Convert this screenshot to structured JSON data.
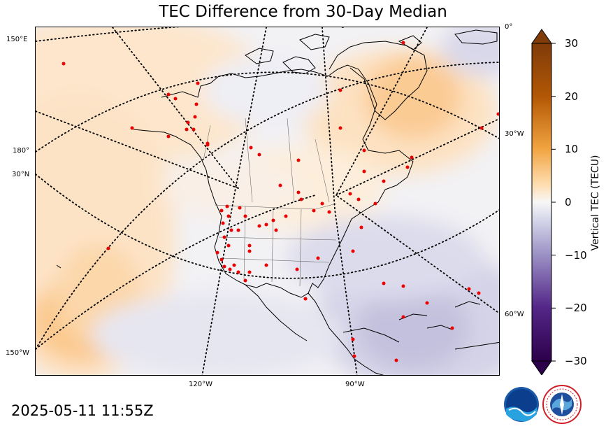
{
  "title": "TEC Difference from 30-Day Median",
  "timestamp": "2025-05-11 11:55Z",
  "map": {
    "projection": "polar stereographic",
    "labels": {
      "lon_150e": "150°E",
      "lon_180": "180°",
      "lat_30n": "30°N",
      "lon_150w": "150°W",
      "lon_120w": "120°W",
      "lon_90w": "90°W",
      "lon_0": "0°",
      "lon_30w": "30°W",
      "lon_60w": "60°W"
    },
    "graticule": "dotted",
    "station_color": "#ff0000"
  },
  "colorbar": {
    "label": "Vertical TEC (TECU)",
    "ticks": [
      "30",
      "20",
      "10",
      "0",
      "−10",
      "−20",
      "−30"
    ],
    "min": -30,
    "max": 30,
    "positive_color": "#7f3b08",
    "negative_color": "#2d004b"
  },
  "logos": [
    "noaa-logo",
    "national-weather-service-logo"
  ]
}
